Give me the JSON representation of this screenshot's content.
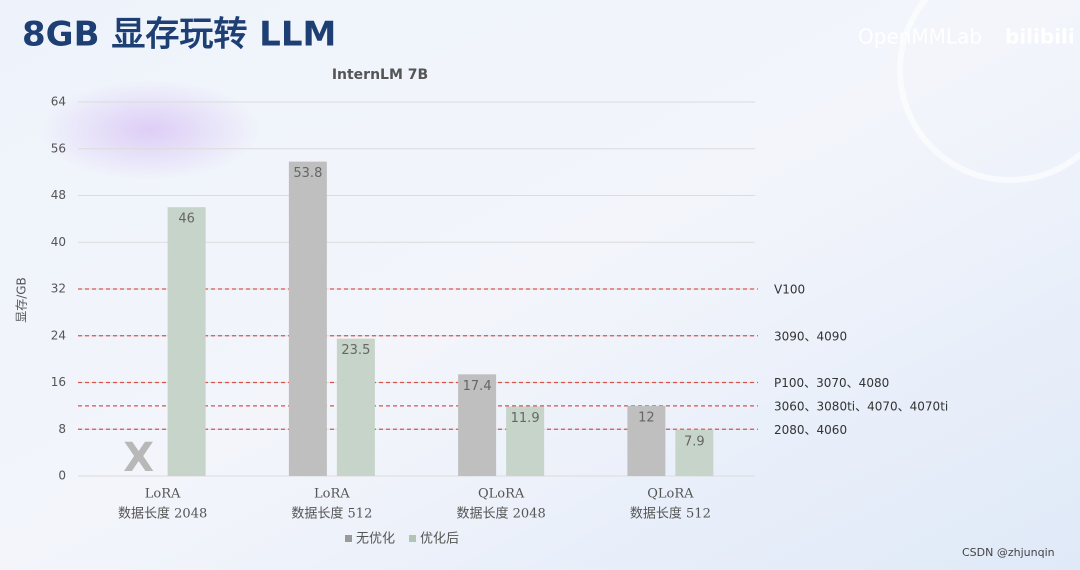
{
  "slide": {
    "title": "8GB 显存玩转 LLM",
    "watermark": "OpenMMLab",
    "logo": "bilibili",
    "credit": "CSDN @zhjunqin"
  },
  "chart_data": {
    "type": "bar",
    "title": "InternLM 7B",
    "y_label": "显存/GB",
    "categories": [
      [
        "LoRA",
        "数据长度 2048"
      ],
      [
        "LoRA",
        "数据长度 512"
      ],
      [
        "QLoRA",
        "数据长度 2048"
      ],
      [
        "QLoRA",
        "数据长度 512"
      ]
    ],
    "series": [
      {
        "name": "无优化",
        "color": "#bfbfbf",
        "values": [
          null,
          53.8,
          17.4,
          12
        ],
        "na_label": "X"
      },
      {
        "name": "优化后",
        "color": "#c6d4c9",
        "values": [
          46,
          23.5,
          11.9,
          7.9
        ]
      }
    ],
    "ylim": [
      0,
      64
    ],
    "yticks": [
      0,
      8,
      16,
      24,
      32,
      40,
      48,
      56,
      64
    ],
    "grid": true,
    "reference_lines": [
      {
        "value": 32,
        "label": "V100"
      },
      {
        "value": 24,
        "label": "3090、4090"
      },
      {
        "value": 16,
        "label": "P100、3070、4080"
      },
      {
        "value": 12,
        "label": "3060、3080ti、4070、4070ti"
      },
      {
        "value": 8,
        "label": "2080、4060"
      }
    ],
    "reference_color": "#d9534f"
  }
}
